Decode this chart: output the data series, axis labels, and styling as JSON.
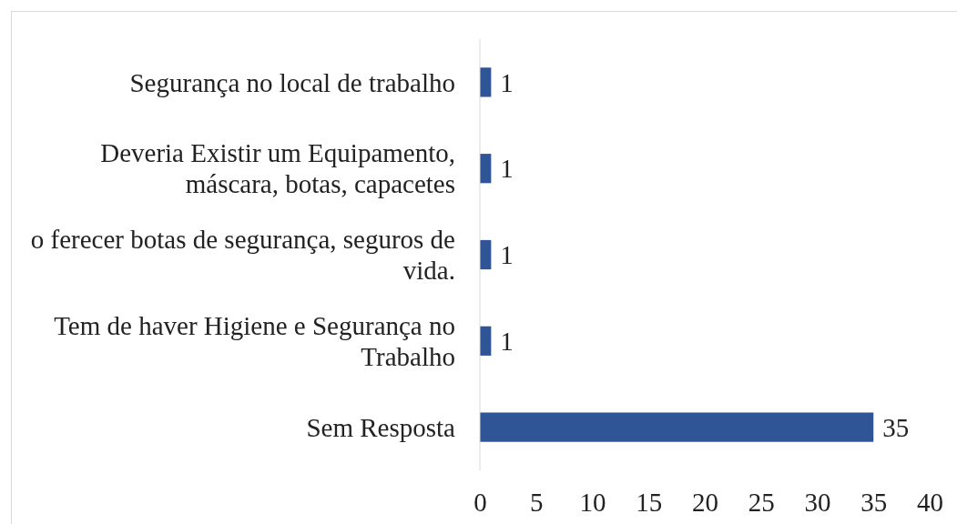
{
  "chart_data": {
    "type": "bar",
    "orientation": "horizontal",
    "categories": [
      "Segurança no local de trabalho",
      "Deveria Existir um Equipamento, máscara, botas, capacetes",
      "o ferecer botas de segurança, seguros de vida.",
      "Tem de haver Higiene e Segurança no Trabalho",
      "Sem Resposta"
    ],
    "values": [
      1,
      1,
      1,
      1,
      35
    ],
    "color": "#2f5597",
    "data_labels": true,
    "xlim": [
      0,
      40
    ],
    "xticks": [
      0,
      5,
      10,
      15,
      20,
      25,
      30,
      35,
      40
    ],
    "grid": false
  }
}
